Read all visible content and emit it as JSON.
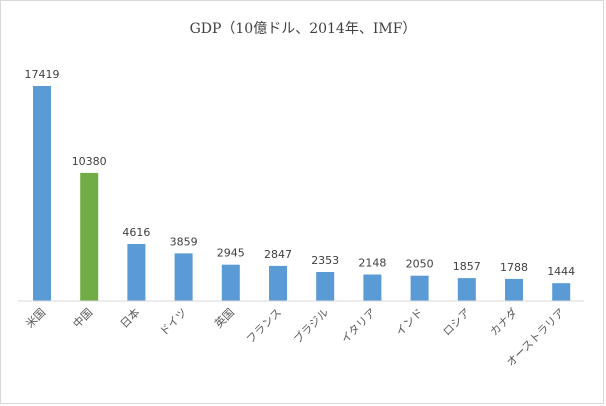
{
  "chart_data": {
    "type": "bar",
    "title": "GDP（10億ドル、2014年、IMF）",
    "categories": [
      "米国",
      "中国",
      "日本",
      "ドイツ",
      "英国",
      "フランス",
      "ブラジル",
      "イタリア",
      "インド",
      "ロシア",
      "カナダ",
      "オーストラリア"
    ],
    "series": [
      {
        "values": [
          17419,
          10380,
          4616,
          3859,
          2945,
          2847,
          2353,
          2148,
          2050,
          1857,
          1788,
          1444
        ]
      }
    ],
    "bar_colors": [
      "#5b9bd5",
      "#70ad47",
      "#5b9bd5",
      "#5b9bd5",
      "#5b9bd5",
      "#5b9bd5",
      "#5b9bd5",
      "#5b9bd5",
      "#5b9bd5",
      "#5b9bd5",
      "#5b9bd5",
      "#5b9bd5"
    ],
    "highlight_category": "中国",
    "ylim": [
      0,
      17419
    ],
    "grid": false,
    "legend": "none",
    "xlabel": "",
    "ylabel": ""
  }
}
